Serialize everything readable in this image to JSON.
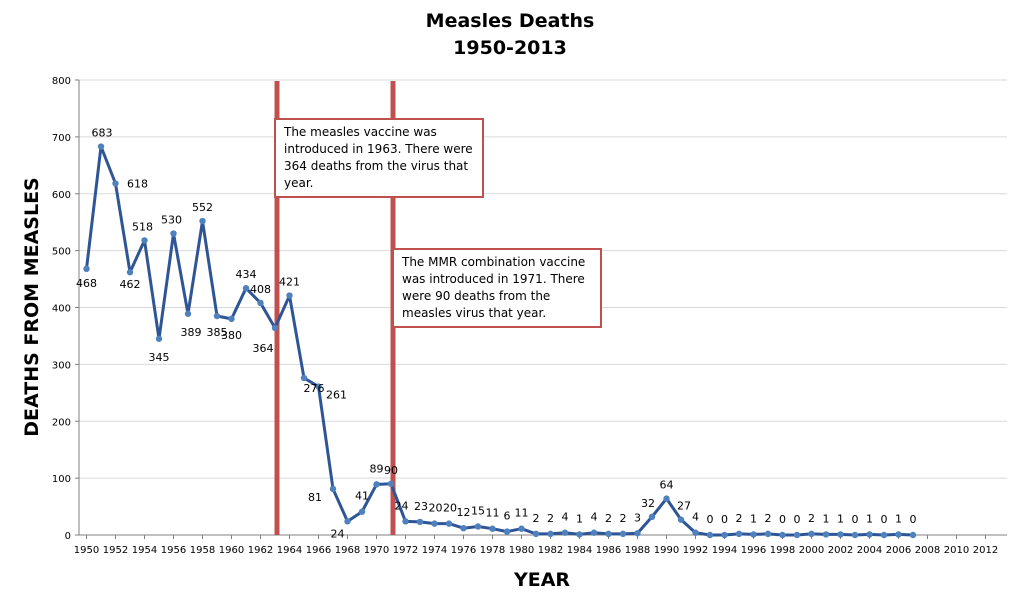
{
  "colors": {
    "line": "#2f5597",
    "marker": "#4f81bd",
    "vaccine_line": "#c0504d",
    "grid": "#d9d9d9",
    "axis": "#808080"
  },
  "chart_data": {
    "type": "line",
    "title_line1": "Measles Deaths",
    "title_line2": "1950-2013",
    "xlabel": "YEAR",
    "ylabel": "DEATHS FROM MEASLES",
    "ylim": [
      0,
      800
    ],
    "y_ticks": [
      0,
      100,
      200,
      300,
      400,
      500,
      600,
      700,
      800
    ],
    "xlim": [
      1950,
      2013
    ],
    "x_ticks": [
      1950,
      1952,
      1954,
      1956,
      1958,
      1960,
      1962,
      1964,
      1966,
      1968,
      1970,
      1972,
      1974,
      1976,
      1978,
      1980,
      1982,
      1984,
      1986,
      1988,
      1990,
      1992,
      1994,
      1996,
      1998,
      2000,
      2002,
      2004,
      2006,
      2008,
      2010,
      2012
    ],
    "grid": "horizontal",
    "legend": "none",
    "x": [
      1950,
      1951,
      1952,
      1953,
      1954,
      1955,
      1956,
      1957,
      1958,
      1959,
      1960,
      1961,
      1962,
      1963,
      1964,
      1965,
      1966,
      1967,
      1968,
      1969,
      1970,
      1971,
      1972,
      1973,
      1974,
      1975,
      1976,
      1977,
      1978,
      1979,
      1980,
      1981,
      1982,
      1983,
      1984,
      1985,
      1986,
      1987,
      1988,
      1989,
      1990,
      1991,
      1992,
      1993,
      1994,
      1995,
      1996,
      1997,
      1998,
      1999,
      2000,
      2001,
      2002,
      2003,
      2004,
      2005,
      2006,
      2007
    ],
    "values": [
      468,
      683,
      618,
      462,
      518,
      345,
      530,
      389,
      552,
      385,
      380,
      434,
      408,
      364,
      421,
      276,
      261,
      81,
      24,
      41,
      89,
      90,
      24,
      23,
      20,
      20,
      12,
      15,
      11,
      6,
      11,
      2,
      2,
      4,
      1,
      4,
      2,
      2,
      3,
      32,
      64,
      27,
      4,
      0,
      0,
      2,
      1,
      2,
      0,
      0,
      2,
      1,
      1,
      0,
      1,
      0,
      1,
      0
    ],
    "data_labels": [
      "468",
      "683",
      "618",
      "462",
      "518",
      "345",
      "530",
      "389",
      "552",
      "385",
      "380",
      "434",
      "408",
      "364",
      "421",
      "276",
      "261",
      "81",
      "24",
      "41",
      "89",
      "90",
      "24",
      "23",
      "20",
      "20",
      "12",
      "15",
      "11",
      "6",
      "11",
      "2",
      "2",
      "4",
      "1",
      "4",
      "2",
      "2",
      "3",
      "32",
      "64",
      "27",
      "4",
      "0",
      "0",
      "2",
      "1",
      "2",
      "0",
      "0",
      "2",
      "1",
      "1",
      "0",
      "1",
      "0",
      "1",
      "0"
    ],
    "vaccine_years": [
      1963,
      1971
    ],
    "annotations": [
      "The measles vaccine was introduced in 1963. There were 364 deaths from the virus that year.",
      "The MMR combination vaccine was introduced in 1971. There were 90 deaths from the measles virus that year."
    ]
  }
}
